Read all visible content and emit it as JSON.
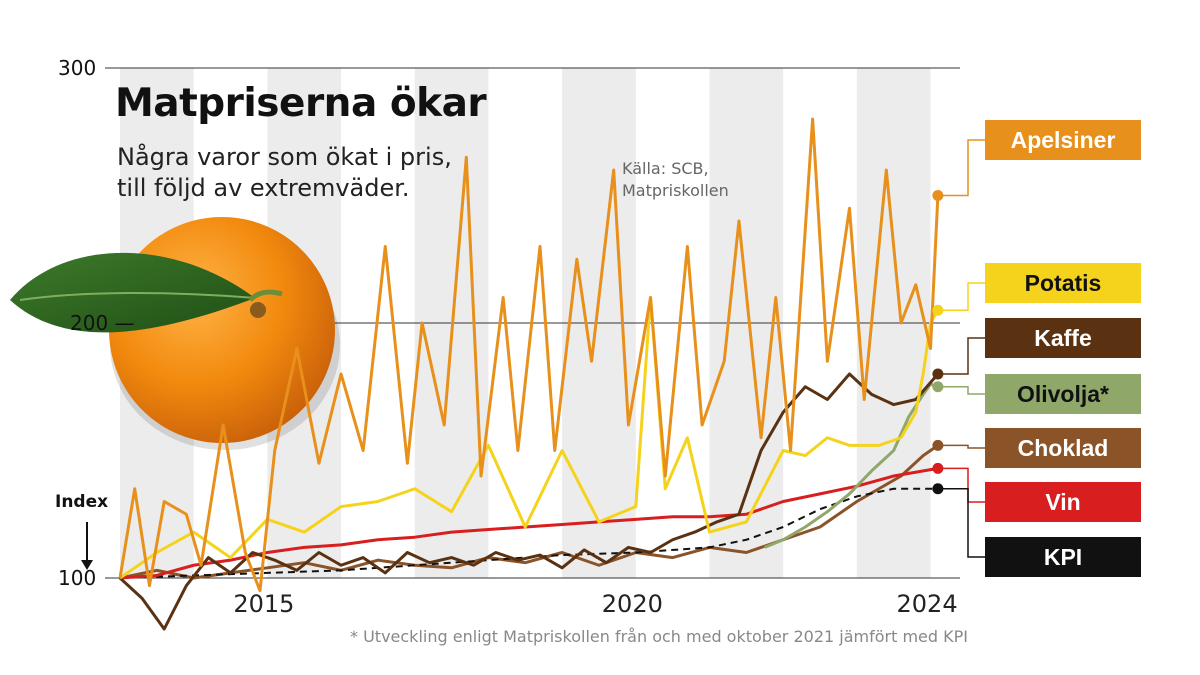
{
  "title": "Matpriserna ökar",
  "subtitle": [
    "Några varor som ökat i pris,",
    "till följd av extremväder."
  ],
  "source": [
    "Källa: SCB,",
    "Matpriskollen"
  ],
  "footnote": "* Utveckling enligt Matpriskollen från och med oktober 2021 jämfört med KPI",
  "chart_data": {
    "type": "line",
    "title": "Matpriserna ökar",
    "ylabel": "Index",
    "ylim": [
      90,
      300
    ],
    "xlim": [
      2013.0,
      2024.4
    ],
    "yticks": [
      100,
      200,
      300
    ],
    "xticks": [
      {
        "value": 2015,
        "label": "2015"
      },
      {
        "value": 2020,
        "label": "2020"
      },
      {
        "value": 2024,
        "label": "2024"
      }
    ],
    "grid": "horizontal lines at 100, 200, 300; alternating shaded year bands",
    "legend": "right, labels at line ends",
    "series": [
      {
        "name": "Apelsiner",
        "color": "#E8901C",
        "x": [
          2013.0,
          2013.2,
          2013.4,
          2013.6,
          2013.9,
          2014.1,
          2014.4,
          2014.7,
          2014.9,
          2015.1,
          2015.4,
          2015.7,
          2016.0,
          2016.3,
          2016.6,
          2016.9,
          2017.1,
          2017.4,
          2017.7,
          2017.9,
          2018.2,
          2018.4,
          2018.7,
          2018.9,
          2019.2,
          2019.4,
          2019.7,
          2019.9,
          2020.2,
          2020.4,
          2020.7,
          2020.9,
          2021.2,
          2021.4,
          2021.7,
          2021.9,
          2022.1,
          2022.4,
          2022.6,
          2022.9,
          2023.1,
          2023.4,
          2023.6,
          2023.8,
          2024.0,
          2024.1
        ],
        "y": [
          100,
          135,
          97,
          130,
          125,
          105,
          160,
          110,
          95,
          150,
          190,
          145,
          180,
          150,
          230,
          145,
          200,
          160,
          265,
          140,
          210,
          150,
          230,
          150,
          225,
          185,
          260,
          160,
          210,
          140,
          230,
          160,
          185,
          240,
          155,
          210,
          150,
          280,
          185,
          245,
          170,
          260,
          200,
          215,
          190,
          250
        ]
      },
      {
        "name": "Potatis",
        "color": "#F5D31C",
        "x": [
          2013.0,
          2013.5,
          2014.0,
          2014.5,
          2015.0,
          2015.5,
          2016.0,
          2016.5,
          2017.0,
          2017.5,
          2018.0,
          2018.5,
          2019.0,
          2019.5,
          2020.0,
          2020.2,
          2020.4,
          2020.7,
          2021.0,
          2021.5,
          2022.0,
          2022.3,
          2022.6,
          2022.9,
          2023.3,
          2023.6,
          2023.8,
          2023.9,
          2024.0,
          2024.1
        ],
        "y": [
          100,
          110,
          118,
          108,
          123,
          118,
          128,
          130,
          135,
          126,
          152,
          120,
          150,
          122,
          128,
          210,
          135,
          155,
          118,
          122,
          150,
          148,
          155,
          152,
          152,
          155,
          165,
          180,
          200,
          205
        ]
      },
      {
        "name": "Kaffe",
        "color": "#5A3212",
        "x": [
          2013.0,
          2013.3,
          2013.6,
          2013.9,
          2014.2,
          2014.5,
          2014.8,
          2015.1,
          2015.4,
          2015.7,
          2016.0,
          2016.3,
          2016.6,
          2016.9,
          2017.2,
          2017.5,
          2017.8,
          2018.1,
          2018.4,
          2018.7,
          2019.0,
          2019.3,
          2019.6,
          2019.9,
          2020.2,
          2020.5,
          2020.8,
          2021.1,
          2021.4,
          2021.7,
          2022.0,
          2022.3,
          2022.6,
          2022.9,
          2023.2,
          2023.5,
          2023.8,
          2024.1
        ],
        "y": [
          100,
          92,
          80,
          97,
          108,
          102,
          110,
          107,
          103,
          110,
          105,
          108,
          102,
          110,
          106,
          108,
          105,
          110,
          107,
          109,
          104,
          111,
          106,
          112,
          110,
          115,
          118,
          122,
          125,
          150,
          165,
          175,
          170,
          180,
          172,
          168,
          170,
          180
        ]
      },
      {
        "name": "Olivolja*",
        "color": "#8FA86A",
        "x": [
          2021.75,
          2022.0,
          2022.3,
          2022.6,
          2022.9,
          2023.2,
          2023.5,
          2023.7,
          2023.9,
          2024.0,
          2024.1
        ],
        "y": [
          112,
          115,
          120,
          126,
          133,
          142,
          150,
          163,
          172,
          176,
          175
        ]
      },
      {
        "name": "Choklad",
        "color": "#8B5328",
        "x": [
          2013.0,
          2013.5,
          2014.0,
          2014.5,
          2015.0,
          2015.5,
          2016.0,
          2016.5,
          2017.0,
          2017.5,
          2018.0,
          2018.5,
          2019.0,
          2019.5,
          2020.0,
          2020.5,
          2021.0,
          2021.5,
          2022.0,
          2022.5,
          2023.0,
          2023.3,
          2023.6,
          2023.9,
          2024.1
        ],
        "y": [
          100,
          103,
          100,
          102,
          104,
          106,
          103,
          107,
          105,
          104,
          108,
          106,
          110,
          105,
          110,
          108,
          112,
          110,
          115,
          120,
          130,
          135,
          140,
          148,
          152
        ]
      },
      {
        "name": "Vin",
        "color": "#D81E1E",
        "x": [
          2013.0,
          2013.5,
          2014.0,
          2014.5,
          2015.0,
          2015.5,
          2016.0,
          2016.5,
          2017.0,
          2017.5,
          2018.0,
          2018.5,
          2019.0,
          2019.5,
          2020.0,
          2020.5,
          2021.0,
          2021.5,
          2022.0,
          2022.5,
          2023.0,
          2023.5,
          2024.1
        ],
        "y": [
          100,
          101,
          105,
          107,
          110,
          112,
          113,
          115,
          116,
          118,
          119,
          120,
          121,
          122,
          123,
          124,
          124,
          125,
          130,
          133,
          136,
          140,
          143
        ]
      },
      {
        "name": "KPI",
        "color": "#111111",
        "x": [
          2013.0,
          2014.0,
          2015.0,
          2016.0,
          2017.0,
          2018.0,
          2019.0,
          2020.0,
          2021.0,
          2021.5,
          2022.0,
          2022.5,
          2023.0,
          2023.5,
          2024.1
        ],
        "y": [
          100,
          101,
          102,
          103,
          105,
          107,
          109,
          110,
          112,
          115,
          120,
          127,
          132,
          135,
          135
        ]
      }
    ]
  },
  "icons": {
    "orange": "orange-fruit-illustration"
  },
  "colors": {
    "background": "#ffffff",
    "grid": "#333333",
    "band": "#ececec"
  }
}
